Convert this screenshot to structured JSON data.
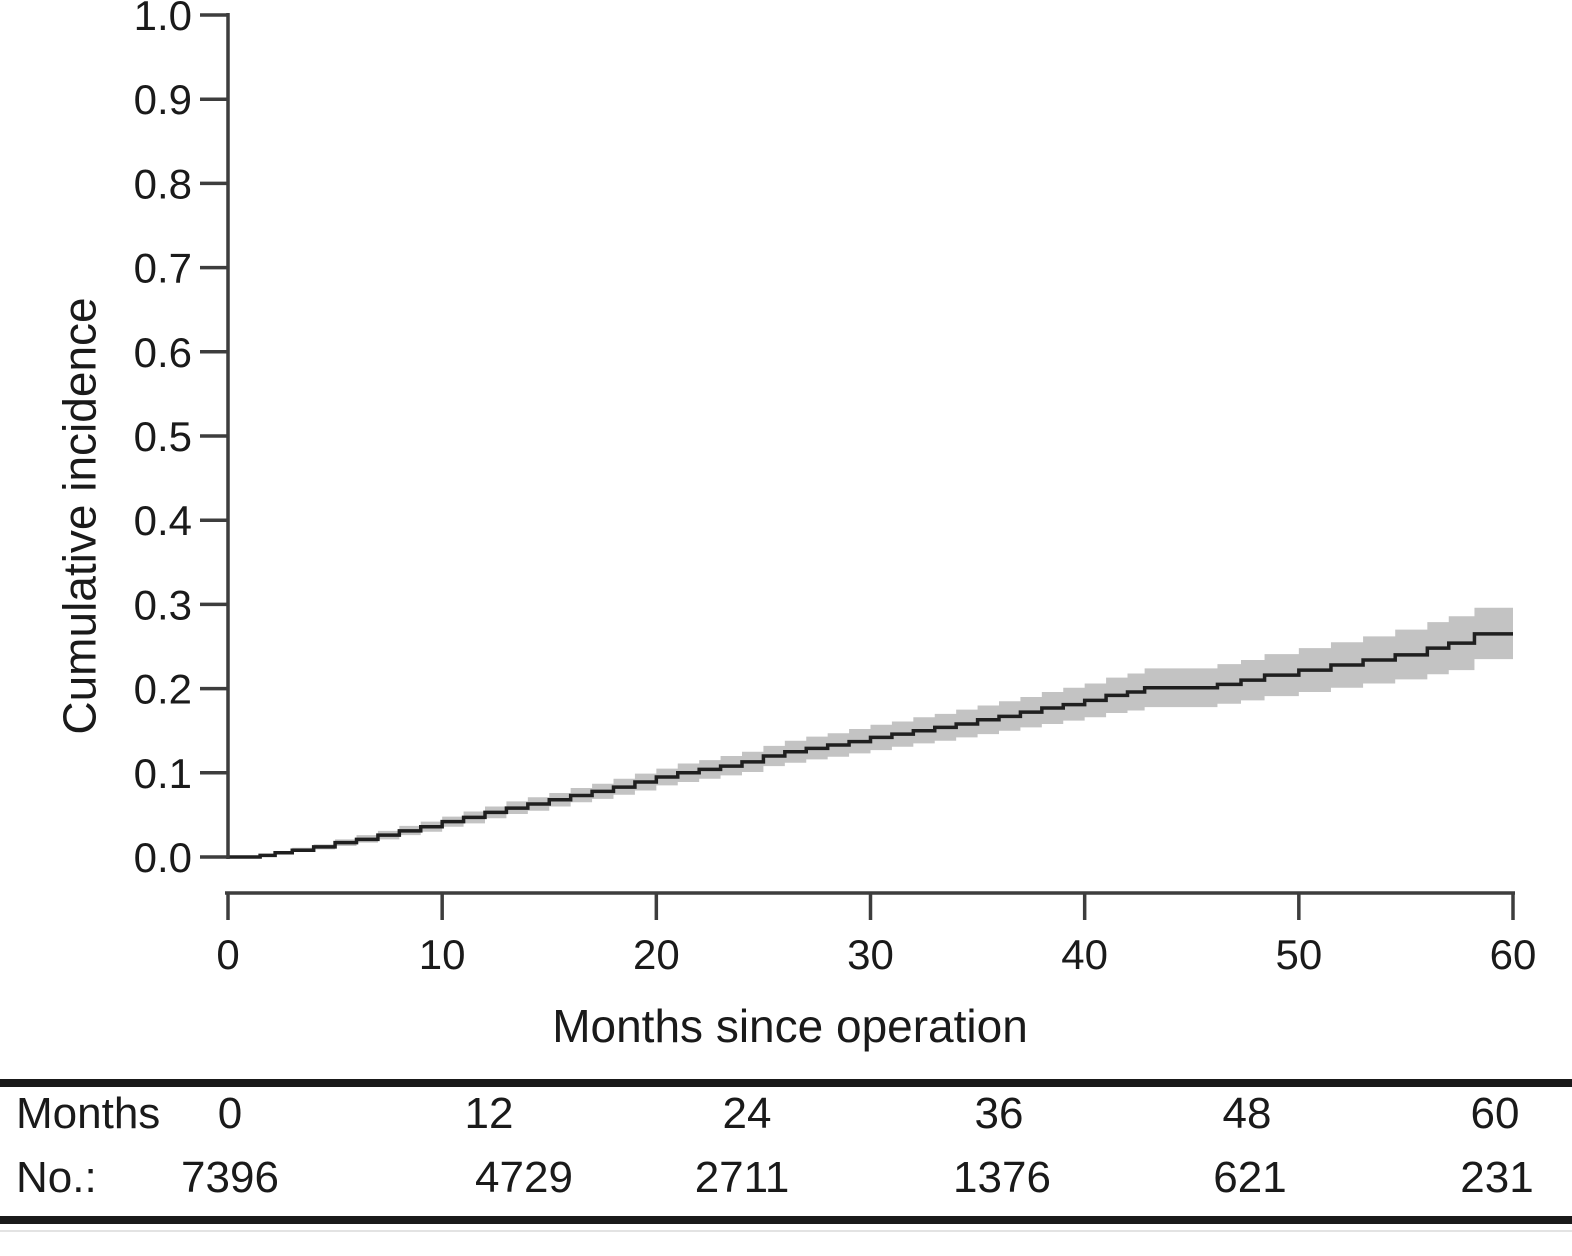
{
  "figure": {
    "x_axis": {
      "label": "Months since operation",
      "tick_labels": [
        "0",
        "10",
        "20",
        "30",
        "40",
        "50",
        "60"
      ]
    },
    "y_axis": {
      "label": "Cumulative incidence",
      "tick_labels": [
        "0.0",
        "0.1",
        "0.2",
        "0.3",
        "0.4",
        "0.5",
        "0.6",
        "0.7",
        "0.8",
        "0.9",
        "1.0"
      ]
    }
  },
  "risk_table": {
    "row1_label": "Months",
    "row2_label": "No.:",
    "months": [
      "0",
      "12",
      "24",
      "36",
      "48",
      "60"
    ],
    "counts": [
      "7396",
      "4729",
      "2711",
      "1376",
      "621",
      "231"
    ]
  },
  "chart_data": {
    "type": "line",
    "subtype": "step-cumulative-incidence-with-ci-band",
    "title": "",
    "xlabel": "Months since operation",
    "ylabel": "Cumulative incidence",
    "xlim": [
      0,
      60
    ],
    "ylim": [
      0.0,
      1.0
    ],
    "x_ticks": [
      0,
      10,
      20,
      30,
      40,
      50,
      60
    ],
    "y_ticks": [
      0.0,
      0.1,
      0.2,
      0.3,
      0.4,
      0.5,
      0.6,
      0.7,
      0.8,
      0.9,
      1.0
    ],
    "grid": false,
    "legend": "none",
    "colors": {
      "line": "#1f1f1f",
      "band": "#c3c3c3",
      "axis": "#3d3d3d",
      "text": "#1a1a1a"
    },
    "series": [
      {
        "name": "Cumulative incidence (estimate, 95% CI lower, 95% CI upper)",
        "step": "after",
        "points": [
          [
            0,
            0.0,
            0.0,
            0.0
          ],
          [
            1.5,
            0.002,
            0.001,
            0.003
          ],
          [
            2.2,
            0.005,
            0.003,
            0.007
          ],
          [
            3,
            0.008,
            0.006,
            0.011
          ],
          [
            4,
            0.012,
            0.009,
            0.015
          ],
          [
            5,
            0.017,
            0.013,
            0.021
          ],
          [
            6,
            0.021,
            0.017,
            0.026
          ],
          [
            7,
            0.026,
            0.021,
            0.031
          ],
          [
            8,
            0.031,
            0.026,
            0.037
          ],
          [
            9,
            0.036,
            0.03,
            0.042
          ],
          [
            10,
            0.042,
            0.036,
            0.048
          ],
          [
            11,
            0.047,
            0.04,
            0.054
          ],
          [
            12,
            0.053,
            0.046,
            0.06
          ],
          [
            13,
            0.058,
            0.051,
            0.066
          ],
          [
            14,
            0.063,
            0.055,
            0.071
          ],
          [
            15,
            0.068,
            0.06,
            0.076
          ],
          [
            16,
            0.073,
            0.065,
            0.082
          ],
          [
            17,
            0.078,
            0.069,
            0.087
          ],
          [
            18,
            0.083,
            0.074,
            0.093
          ],
          [
            19,
            0.089,
            0.079,
            0.099
          ],
          [
            20,
            0.095,
            0.085,
            0.105
          ],
          [
            21,
            0.1,
            0.089,
            0.111
          ],
          [
            22,
            0.104,
            0.093,
            0.115
          ],
          [
            23,
            0.108,
            0.097,
            0.12
          ],
          [
            24,
            0.113,
            0.101,
            0.125
          ],
          [
            25,
            0.12,
            0.108,
            0.132
          ],
          [
            26,
            0.125,
            0.112,
            0.138
          ],
          [
            27,
            0.129,
            0.116,
            0.143
          ],
          [
            28,
            0.133,
            0.119,
            0.147
          ],
          [
            29,
            0.137,
            0.123,
            0.152
          ],
          [
            30,
            0.142,
            0.127,
            0.157
          ],
          [
            31,
            0.146,
            0.131,
            0.161
          ],
          [
            32,
            0.15,
            0.135,
            0.166
          ],
          [
            33,
            0.154,
            0.138,
            0.17
          ],
          [
            34,
            0.158,
            0.142,
            0.175
          ],
          [
            35,
            0.163,
            0.146,
            0.18
          ],
          [
            36,
            0.167,
            0.15,
            0.185
          ],
          [
            37,
            0.172,
            0.154,
            0.19
          ],
          [
            38,
            0.177,
            0.158,
            0.196
          ],
          [
            39,
            0.181,
            0.162,
            0.201
          ],
          [
            40,
            0.186,
            0.166,
            0.206
          ],
          [
            41,
            0.192,
            0.171,
            0.213
          ],
          [
            42,
            0.196,
            0.174,
            0.218
          ],
          [
            42.8,
            0.201,
            0.178,
            0.224
          ],
          [
            46.2,
            0.205,
            0.182,
            0.229
          ],
          [
            47.3,
            0.21,
            0.186,
            0.234
          ],
          [
            48.4,
            0.216,
            0.191,
            0.241
          ],
          [
            50,
            0.222,
            0.196,
            0.248
          ],
          [
            51.5,
            0.228,
            0.201,
            0.255
          ],
          [
            53,
            0.234,
            0.206,
            0.262
          ],
          [
            54.5,
            0.24,
            0.211,
            0.27
          ],
          [
            56,
            0.248,
            0.217,
            0.279
          ],
          [
            57,
            0.254,
            0.222,
            0.286
          ],
          [
            58.2,
            0.265,
            0.235,
            0.296
          ],
          [
            60,
            0.265,
            0.235,
            0.296
          ]
        ]
      }
    ],
    "at_risk_table": {
      "months": [
        0,
        12,
        24,
        36,
        48,
        60
      ],
      "n": [
        7396,
        4729,
        2711,
        1376,
        621,
        231
      ]
    }
  },
  "geometry_note": "step curve rises nearly linearly from 0.0 at month 0 to about 0.265 at month 60"
}
